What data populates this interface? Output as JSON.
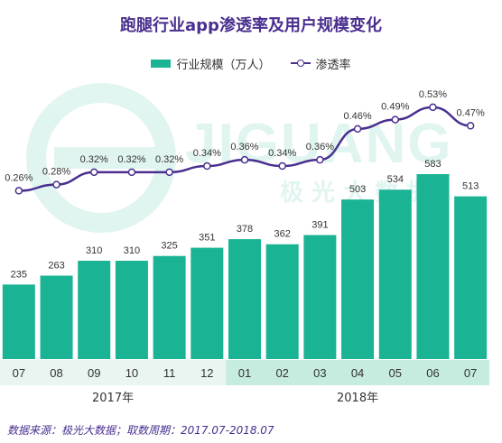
{
  "title": "跑腿行业app渗透率及用户规模变化",
  "legend": {
    "bar_label": "行业规模（万人）",
    "line_label": "渗透率"
  },
  "colors": {
    "bar": "#1ab394",
    "line": "#4a2f8f",
    "title": "#4a2f8f",
    "axis_band_2017": "#e8f5f0",
    "axis_band_2018": "#c6ebdf"
  },
  "watermark": {
    "text": "JIGUANG",
    "subtext": "极 光 大 数 据"
  },
  "chart_data": {
    "type": "bar+line",
    "categories": [
      "07",
      "08",
      "09",
      "10",
      "11",
      "12",
      "01",
      "02",
      "03",
      "04",
      "05",
      "06",
      "07"
    ],
    "year_groups": [
      {
        "label": "2017年",
        "start": 0,
        "end": 5
      },
      {
        "label": "2018年",
        "start": 6,
        "end": 12
      }
    ],
    "series": [
      {
        "name": "行业规模（万人）",
        "type": "bar",
        "values": [
          235,
          263,
          310,
          310,
          325,
          351,
          378,
          362,
          391,
          503,
          534,
          583,
          513
        ],
        "labels": [
          "235",
          "263",
          "310",
          "310",
          "325",
          "351",
          "378",
          "362",
          "391",
          "503",
          "534",
          "583",
          "513"
        ]
      },
      {
        "name": "渗透率",
        "type": "line",
        "values": [
          0.26,
          0.28,
          0.32,
          0.32,
          0.32,
          0.34,
          0.36,
          0.34,
          0.36,
          0.46,
          0.49,
          0.53,
          0.47
        ],
        "labels": [
          "0.26%",
          "0.28%",
          "0.32%",
          "0.32%",
          "0.32%",
          "0.34%",
          "0.36%",
          "0.34%",
          "0.36%",
          "0.46%",
          "0.49%",
          "0.53%",
          "0.47%"
        ]
      }
    ]
  },
  "source": "数据来源：极光大数据；取数周期：2017.07-2018.07"
}
